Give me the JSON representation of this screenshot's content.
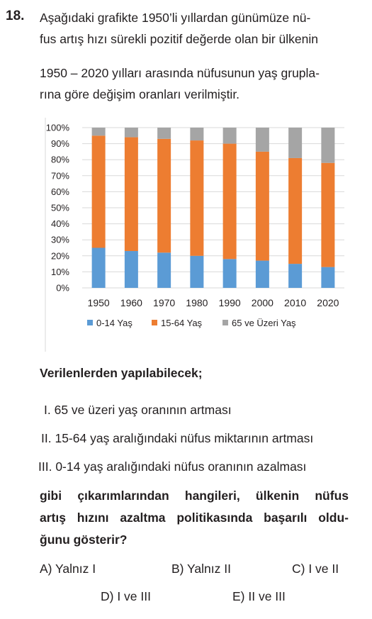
{
  "question_number": "18.",
  "intro_lines": [
    "Aşağıdaki grafikte 1950’li yıllardan günümüze nü-",
    "fus artış hızı sürekli pozitif değerde olan bir ülkenin",
    "1950 – 2020 yılları arasında nüfusunun yaş grupla-",
    "rına göre değişim oranları verilmiştir."
  ],
  "chart_data": {
    "type": "bar",
    "stacked": true,
    "categories": [
      "1950",
      "1960",
      "1970",
      "1980",
      "1990",
      "2000",
      "2010",
      "2020"
    ],
    "series": [
      {
        "name": "0-14 Yaş",
        "color": "#5b9bd5",
        "values": [
          25,
          23,
          22,
          20,
          18,
          17,
          15,
          13
        ]
      },
      {
        "name": "15-64 Yaş",
        "color": "#ed7d31",
        "values": [
          70,
          71,
          71,
          72,
          72,
          68,
          66,
          65
        ]
      },
      {
        "name": "65 ve Üzeri Yaş",
        "color": "#a5a5a5",
        "values": [
          5,
          6,
          7,
          8,
          10,
          15,
          19,
          22
        ]
      }
    ],
    "y_ticks": [
      "0%",
      "10%",
      "20%",
      "30%",
      "40%",
      "50%",
      "60%",
      "70%",
      "80%",
      "90%",
      "100%"
    ],
    "ylim": [
      0,
      100
    ],
    "grid": true,
    "legend_position": "bottom"
  },
  "lead_text": "Verilenlerden yapılabilecek;",
  "statements": [
    {
      "numeral": "I.",
      "text": "65 ve üzeri yaş oranının artması"
    },
    {
      "numeral": "II.",
      "text": "15-64 yaş aralığındaki nüfus miktarının artması"
    },
    {
      "numeral": "III.",
      "text": "0-14 yaş aralığındaki nüfus oranının azalması"
    }
  ],
  "question_lines": [
    "gibi çıkarımlarından hangileri, ülkenin nüfus",
    "artış hızını azaltma politikasında başarılı oldu-",
    "ğunu gösterir?"
  ],
  "options": [
    {
      "label": "A) Yalnız I"
    },
    {
      "label": "B) Yalnız II"
    },
    {
      "label": "C) I ve II"
    },
    {
      "label": "D) I ve III"
    },
    {
      "label": "E) II ve III"
    }
  ]
}
